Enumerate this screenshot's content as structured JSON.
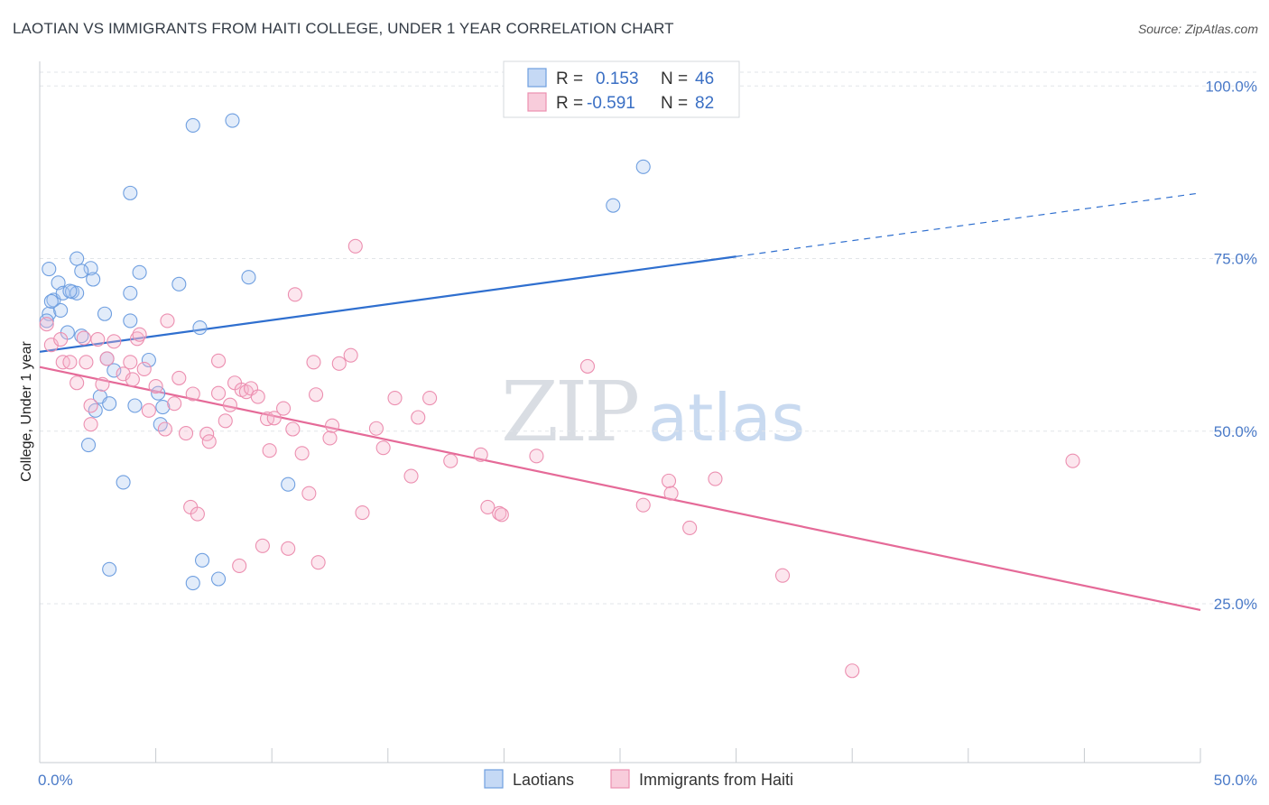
{
  "title": "LAOTIAN VS IMMIGRANTS FROM HAITI COLLEGE, UNDER 1 YEAR CORRELATION CHART",
  "source": "Source: ZipAtlas.com",
  "watermark": {
    "zip": "ZIP",
    "atlas": "atlas"
  },
  "colors": {
    "blue": "#6f9fe0",
    "pink": "#ec8fb0",
    "blue_line": "#2f6fcf",
    "pink_line": "#e56a98",
    "axis_text": "#4a7ac8"
  },
  "legend": {
    "r_label": "R =",
    "n_label": "N =",
    "rows": [
      {
        "r": "0.153",
        "n": "46"
      },
      {
        "r": "-0.591",
        "n": "82"
      }
    ]
  },
  "chart_data": {
    "type": "scatter",
    "ylabel": "College, Under 1 year",
    "xlim": [
      0,
      50
    ],
    "ylim": [
      2,
      102
    ],
    "x_ticks": [
      "0.0%",
      "50.0%"
    ],
    "y_ticks": [
      {
        "value": 100,
        "label": "100.0%"
      },
      {
        "value": 75,
        "label": "75.0%"
      },
      {
        "value": 50,
        "label": "50.0%"
      },
      {
        "value": 25,
        "label": "25.0%"
      }
    ],
    "grid": true,
    "series": [
      {
        "name": "Laotians",
        "color": "#6f9fe0",
        "trend": {
          "x": [
            0,
            30
          ],
          "y": [
            61.5,
            75.3
          ],
          "dashed_to": [
            50,
            84.5
          ]
        },
        "points": [
          [
            0.4,
            67
          ],
          [
            0.3,
            66
          ],
          [
            0.4,
            73.5
          ],
          [
            0.6,
            69
          ],
          [
            0.8,
            71.5
          ],
          [
            0.9,
            67.5
          ],
          [
            1.0,
            70
          ],
          [
            1.4,
            70.2
          ],
          [
            1.6,
            75
          ],
          [
            1.6,
            70
          ],
          [
            1.8,
            63.8
          ],
          [
            2.2,
            73.6
          ],
          [
            2.3,
            72
          ],
          [
            2.4,
            53
          ],
          [
            2.6,
            55
          ],
          [
            2.8,
            67
          ],
          [
            2.9,
            60.5
          ],
          [
            3.0,
            54
          ],
          [
            3.2,
            58.8
          ],
          [
            3.0,
            30
          ],
          [
            3.6,
            42.6
          ],
          [
            1.2,
            64.3
          ],
          [
            1.3,
            70.3
          ],
          [
            2.1,
            48
          ],
          [
            3.9,
            84.5
          ],
          [
            3.9,
            66
          ],
          [
            3.9,
            70
          ],
          [
            4.1,
            53.7
          ],
          [
            4.3,
            73
          ],
          [
            4.7,
            60.3
          ],
          [
            5.1,
            55.5
          ],
          [
            5.2,
            51
          ],
          [
            5.3,
            53.5
          ],
          [
            6.0,
            71.3
          ],
          [
            6.6,
            94.3
          ],
          [
            6.6,
            28
          ],
          [
            6.9,
            65
          ],
          [
            7.0,
            31.3
          ],
          [
            7.7,
            28.6
          ],
          [
            8.3,
            95
          ],
          [
            9.0,
            72.3
          ],
          [
            10.7,
            42.3
          ],
          [
            24.7,
            82.7
          ],
          [
            26.0,
            88.3
          ],
          [
            1.8,
            73.2
          ],
          [
            0.5,
            68.8
          ]
        ]
      },
      {
        "name": "Immigrants from Haiti",
        "color": "#ec8fb0",
        "trend": {
          "x": [
            0,
            50
          ],
          "y": [
            59.3,
            24.1
          ]
        },
        "points": [
          [
            0.3,
            65.5
          ],
          [
            0.5,
            62.5
          ],
          [
            0.9,
            63.3
          ],
          [
            1.0,
            60
          ],
          [
            1.3,
            60
          ],
          [
            1.6,
            57
          ],
          [
            1.9,
            63.5
          ],
          [
            2.0,
            60
          ],
          [
            2.2,
            53.7
          ],
          [
            2.2,
            51
          ],
          [
            2.5,
            63.3
          ],
          [
            2.7,
            56.8
          ],
          [
            2.9,
            60.5
          ],
          [
            3.2,
            63
          ],
          [
            3.6,
            58.3
          ],
          [
            3.9,
            60
          ],
          [
            4.0,
            57.5
          ],
          [
            4.2,
            63.4
          ],
          [
            4.3,
            64
          ],
          [
            4.5,
            59
          ],
          [
            4.7,
            53
          ],
          [
            5.0,
            56.5
          ],
          [
            5.4,
            50.3
          ],
          [
            5.5,
            66
          ],
          [
            5.8,
            54
          ],
          [
            6.0,
            57.7
          ],
          [
            6.3,
            49.7
          ],
          [
            6.5,
            39
          ],
          [
            6.6,
            55.4
          ],
          [
            6.8,
            38
          ],
          [
            7.2,
            49.6
          ],
          [
            7.3,
            48.5
          ],
          [
            7.7,
            55.5
          ],
          [
            7.7,
            60.2
          ],
          [
            8.0,
            51.5
          ],
          [
            8.2,
            53.8
          ],
          [
            8.4,
            57
          ],
          [
            8.6,
            30.5
          ],
          [
            8.7,
            56
          ],
          [
            8.9,
            55.7
          ],
          [
            9.1,
            56.2
          ],
          [
            9.4,
            55
          ],
          [
            9.6,
            33.4
          ],
          [
            9.8,
            51.8
          ],
          [
            9.9,
            47.2
          ],
          [
            10.1,
            51.9
          ],
          [
            10.5,
            53.3
          ],
          [
            10.7,
            33
          ],
          [
            10.9,
            50.3
          ],
          [
            11.0,
            69.8
          ],
          [
            11.3,
            46.8
          ],
          [
            11.6,
            41
          ],
          [
            11.8,
            60
          ],
          [
            11.9,
            55.3
          ],
          [
            12.0,
            31
          ],
          [
            12.5,
            49
          ],
          [
            12.6,
            50.8
          ],
          [
            12.9,
            59.8
          ],
          [
            13.4,
            61
          ],
          [
            13.6,
            76.8
          ],
          [
            13.9,
            38.2
          ],
          [
            14.5,
            50.4
          ],
          [
            14.8,
            47.6
          ],
          [
            15.3,
            54.8
          ],
          [
            16.0,
            43.5
          ],
          [
            16.3,
            52
          ],
          [
            16.8,
            54.8
          ],
          [
            17.7,
            45.7
          ],
          [
            19.0,
            46.6
          ],
          [
            19.3,
            39
          ],
          [
            19.8,
            38.1
          ],
          [
            19.9,
            37.9
          ],
          [
            21.4,
            46.4
          ],
          [
            23.6,
            59.4
          ],
          [
            26.0,
            39.3
          ],
          [
            27.1,
            42.8
          ],
          [
            27.2,
            41
          ],
          [
            28.0,
            36
          ],
          [
            29.1,
            43.1
          ],
          [
            32.0,
            29.1
          ],
          [
            35.0,
            15.3
          ],
          [
            44.5,
            45.7
          ]
        ]
      }
    ]
  },
  "bottom_legend": [
    "Laotians",
    "Immigrants from Haiti"
  ]
}
